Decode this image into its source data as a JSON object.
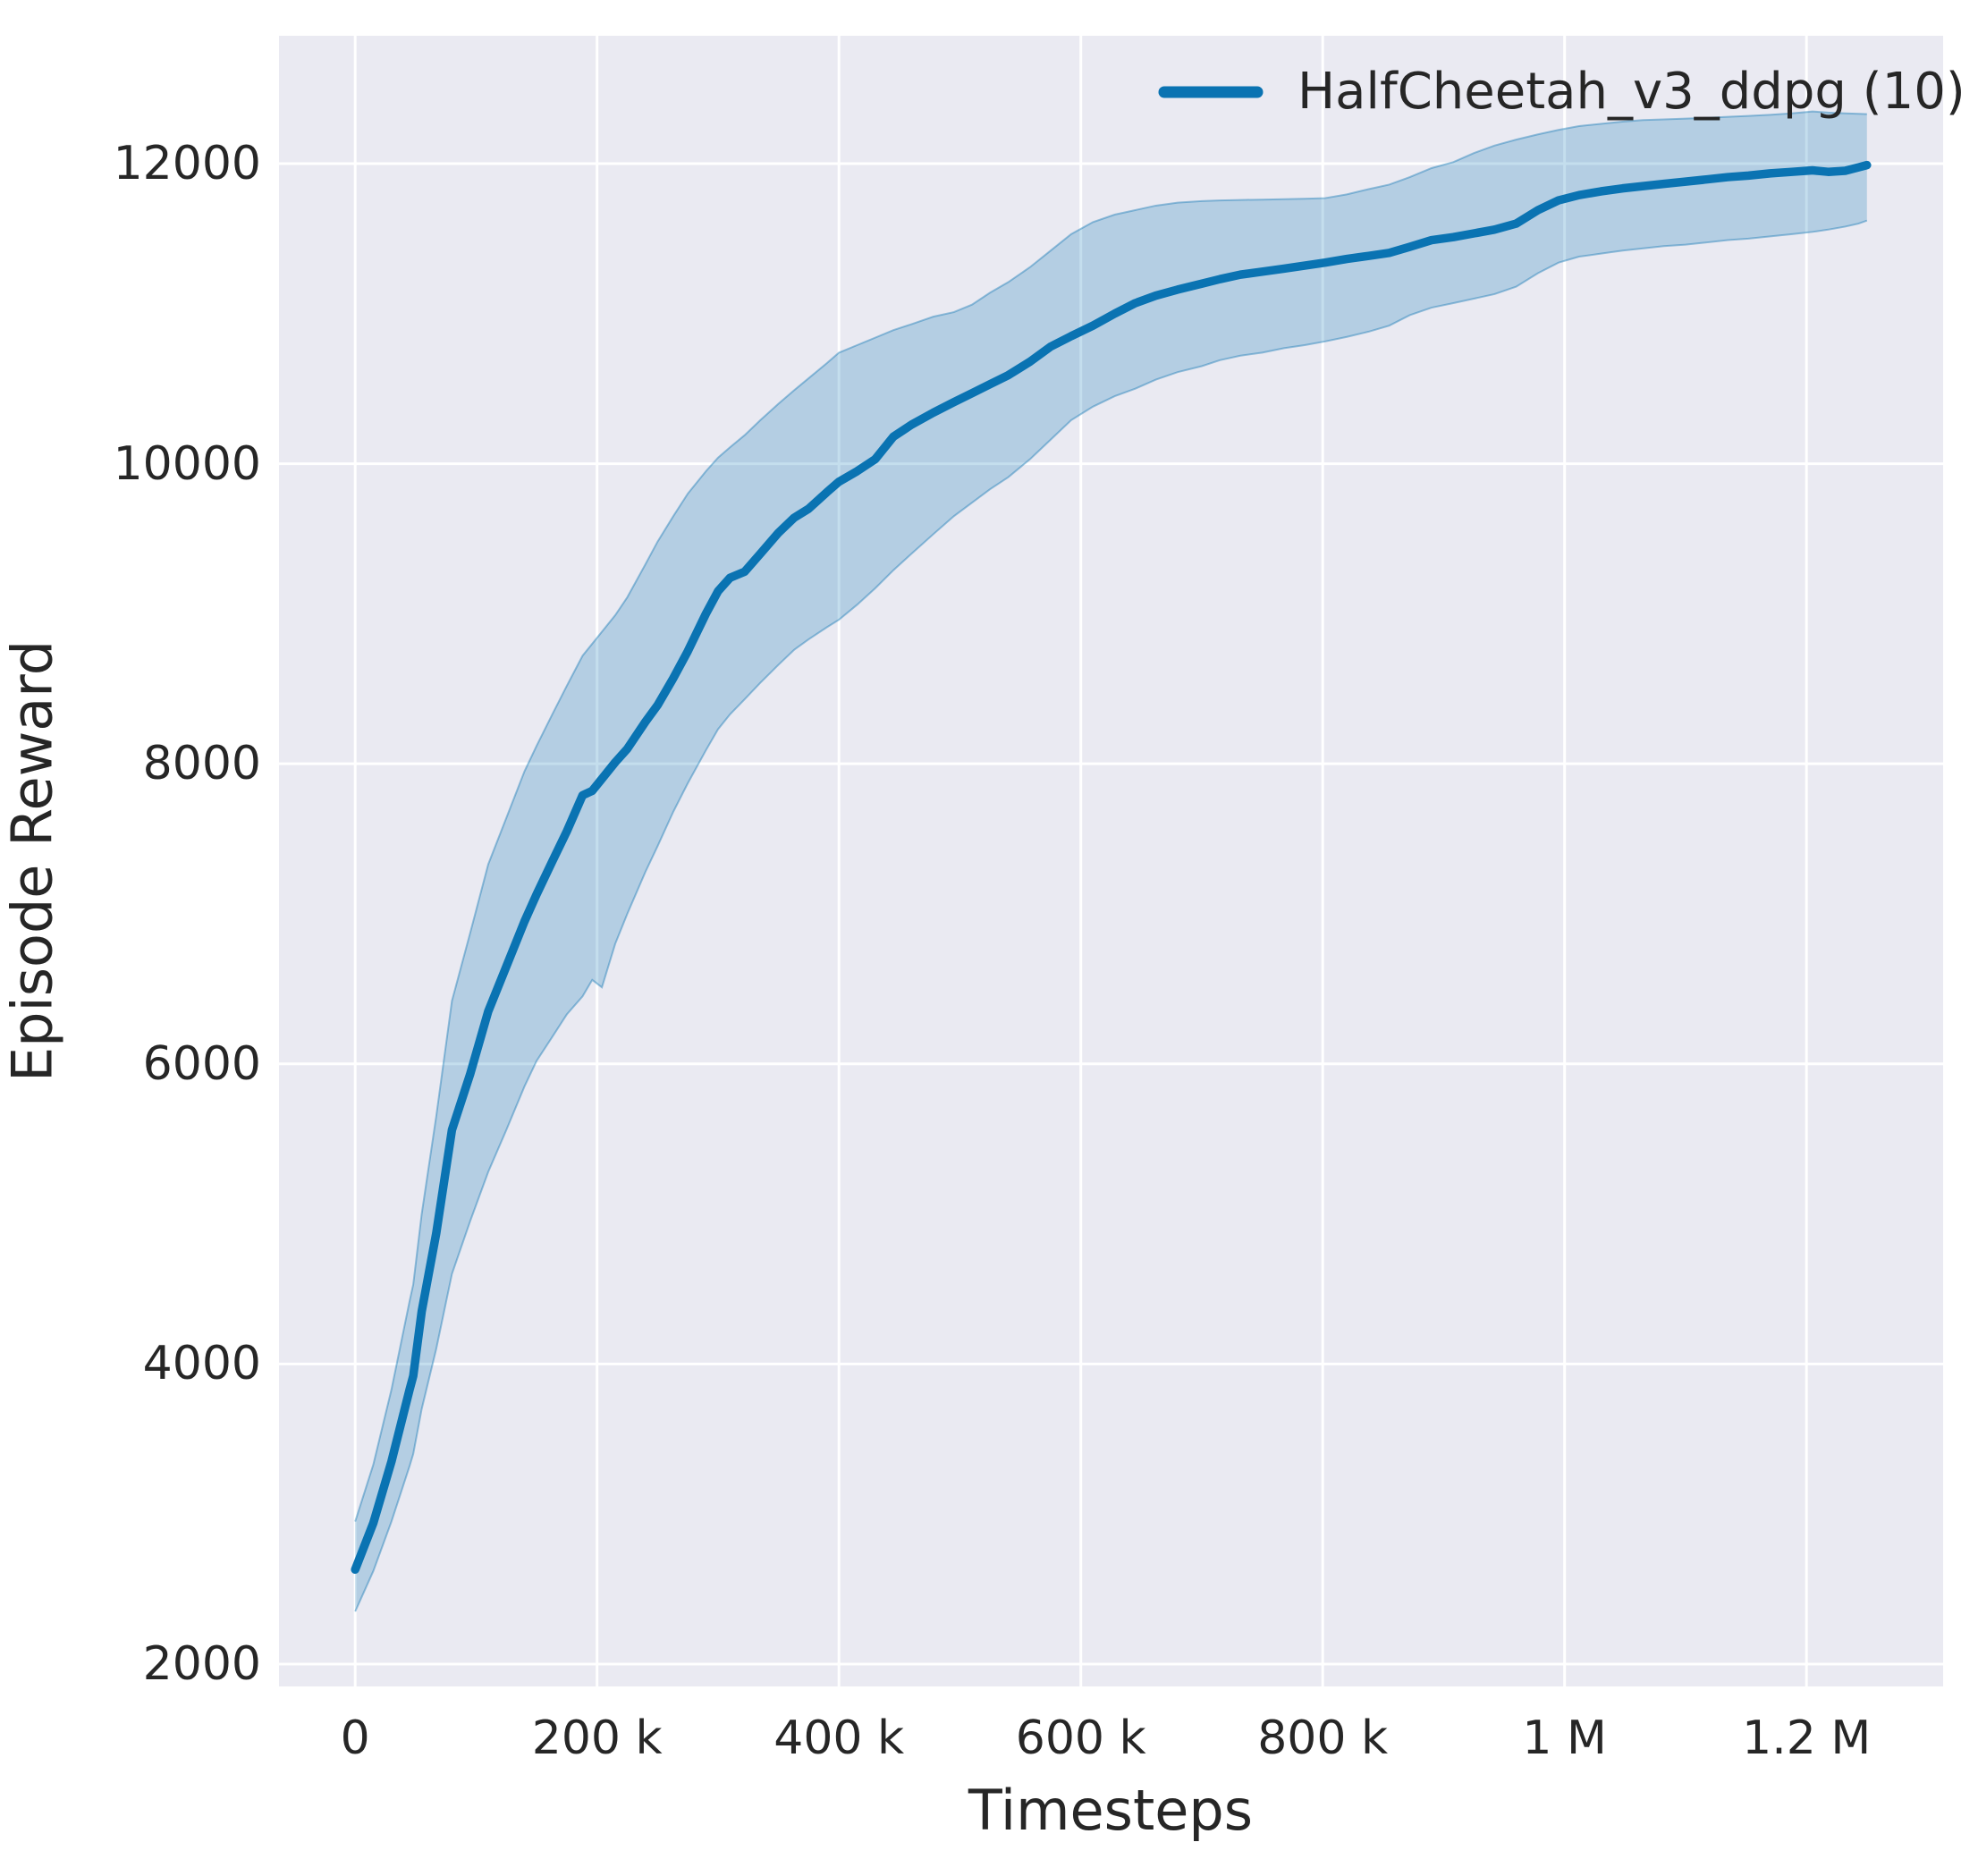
{
  "figure": {
    "background": "#ffffff",
    "axes_background": "#eaeaf2",
    "grid_color": "#ffffff",
    "text_color": "#262626"
  },
  "axes": {
    "xlabel": "Timesteps",
    "ylabel": "Episode Reward"
  },
  "legend": {
    "label": "HalfCheetah_v3_ddpg (10)",
    "line_color": "#0a73b2"
  },
  "chart_data": {
    "type": "line",
    "title": "",
    "xlabel": "Timesteps",
    "ylabel": "Episode Reward",
    "grid": true,
    "legend_position": "upper right",
    "xlim": [
      -63000,
      1313000
    ],
    "ylim": [
      1851,
      12852
    ],
    "xticks": {
      "values": [
        0,
        200000,
        400000,
        600000,
        800000,
        1000000,
        1200000
      ],
      "labels": [
        "0",
        "200 k",
        "400 k",
        "600 k",
        "800 k",
        "1 M",
        "1.2 M"
      ]
    },
    "yticks": {
      "values": [
        2000,
        4000,
        6000,
        8000,
        10000,
        12000
      ],
      "labels": [
        "2000",
        "4000",
        "6000",
        "8000",
        "10000",
        "12000"
      ]
    },
    "series": [
      {
        "name": "HalfCheetah_v3_ddpg (10)",
        "color": "#0a73b2",
        "band_fill": "rgba(10,115,178,0.24)",
        "band_edge": "rgba(10,115,178,0.40)",
        "x": [
          0,
          15000,
          30000,
          45000,
          48000,
          55000,
          67000,
          80000,
          95000,
          110000,
          125000,
          140000,
          150000,
          163000,
          175000,
          188000,
          196000,
          204000,
          215000,
          225000,
          240000,
          250000,
          263000,
          275000,
          290000,
          300000,
          310000,
          322000,
          335000,
          350000,
          363000,
          375000,
          390000,
          400000,
          415000,
          430000,
          445000,
          460000,
          478000,
          495000,
          510000,
          525000,
          540000,
          558000,
          575000,
          592000,
          610000,
          628000,
          645000,
          662000,
          680000,
          700000,
          715000,
          732000,
          750000,
          768000,
          785000,
          802000,
          820000,
          838000,
          855000,
          872000,
          890000,
          908000,
          925000,
          942000,
          960000,
          978000,
          995000,
          1012000,
          1030000,
          1048000,
          1065000,
          1082000,
          1100000,
          1118000,
          1135000,
          1152000,
          1170000,
          1188000,
          1205000,
          1218000,
          1232000,
          1243000,
          1250000
        ],
        "mean": [
          2630,
          2940,
          3350,
          3830,
          3920,
          4350,
          4870,
          5560,
          5930,
          6350,
          6650,
          6950,
          7130,
          7350,
          7550,
          7790,
          7820,
          7900,
          8010,
          8100,
          8280,
          8390,
          8570,
          8750,
          9000,
          9150,
          9240,
          9280,
          9400,
          9540,
          9640,
          9700,
          9810,
          9880,
          9950,
          10030,
          10180,
          10260,
          10340,
          10410,
          10470,
          10530,
          10590,
          10680,
          10780,
          10850,
          10920,
          11000,
          11070,
          11120,
          11160,
          11200,
          11230,
          11260,
          11280,
          11300,
          11320,
          11340,
          11365,
          11385,
          11405,
          11445,
          11490,
          11510,
          11535,
          11560,
          11600,
          11690,
          11755,
          11790,
          11815,
          11835,
          11850,
          11865,
          11880,
          11895,
          11910,
          11920,
          11935,
          11945,
          11955,
          11945,
          11952,
          11975,
          11990
        ],
        "lower": [
          2350,
          2620,
          2950,
          3320,
          3400,
          3700,
          4100,
          4600,
          4950,
          5280,
          5560,
          5850,
          6020,
          6180,
          6330,
          6450,
          6560,
          6510,
          6800,
          7000,
          7280,
          7450,
          7680,
          7870,
          8090,
          8230,
          8330,
          8430,
          8540,
          8660,
          8760,
          8830,
          8910,
          8960,
          9060,
          9170,
          9290,
          9400,
          9530,
          9650,
          9740,
          9830,
          9910,
          10030,
          10160,
          10290,
          10380,
          10450,
          10500,
          10560,
          10610,
          10650,
          10690,
          10720,
          10740,
          10770,
          10790,
          10815,
          10845,
          10880,
          10920,
          10990,
          11040,
          11070,
          11100,
          11130,
          11180,
          11270,
          11340,
          11380,
          11400,
          11420,
          11435,
          11450,
          11460,
          11475,
          11490,
          11500,
          11515,
          11530,
          11545,
          11560,
          11580,
          11600,
          11620
        ],
        "upper": [
          2950,
          3330,
          3830,
          4420,
          4530,
          5000,
          5650,
          6420,
          6870,
          7330,
          7640,
          7950,
          8120,
          8330,
          8520,
          8720,
          8800,
          8880,
          8990,
          9110,
          9330,
          9480,
          9650,
          9800,
          9950,
          10040,
          10110,
          10190,
          10290,
          10400,
          10490,
          10570,
          10670,
          10740,
          10790,
          10840,
          10890,
          10930,
          10980,
          11010,
          11060,
          11140,
          11210,
          11310,
          11420,
          11530,
          11610,
          11660,
          11690,
          11720,
          11740,
          11750,
          11755,
          11758,
          11760,
          11763,
          11766,
          11770,
          11795,
          11830,
          11860,
          11910,
          11970,
          12010,
          12070,
          12120,
          12160,
          12195,
          12225,
          12250,
          12265,
          12280,
          12290,
          12295,
          12300,
          12305,
          12312,
          12318,
          12325,
          12335,
          12348,
          12340,
          12335,
          12332,
          12330
        ]
      }
    ]
  }
}
